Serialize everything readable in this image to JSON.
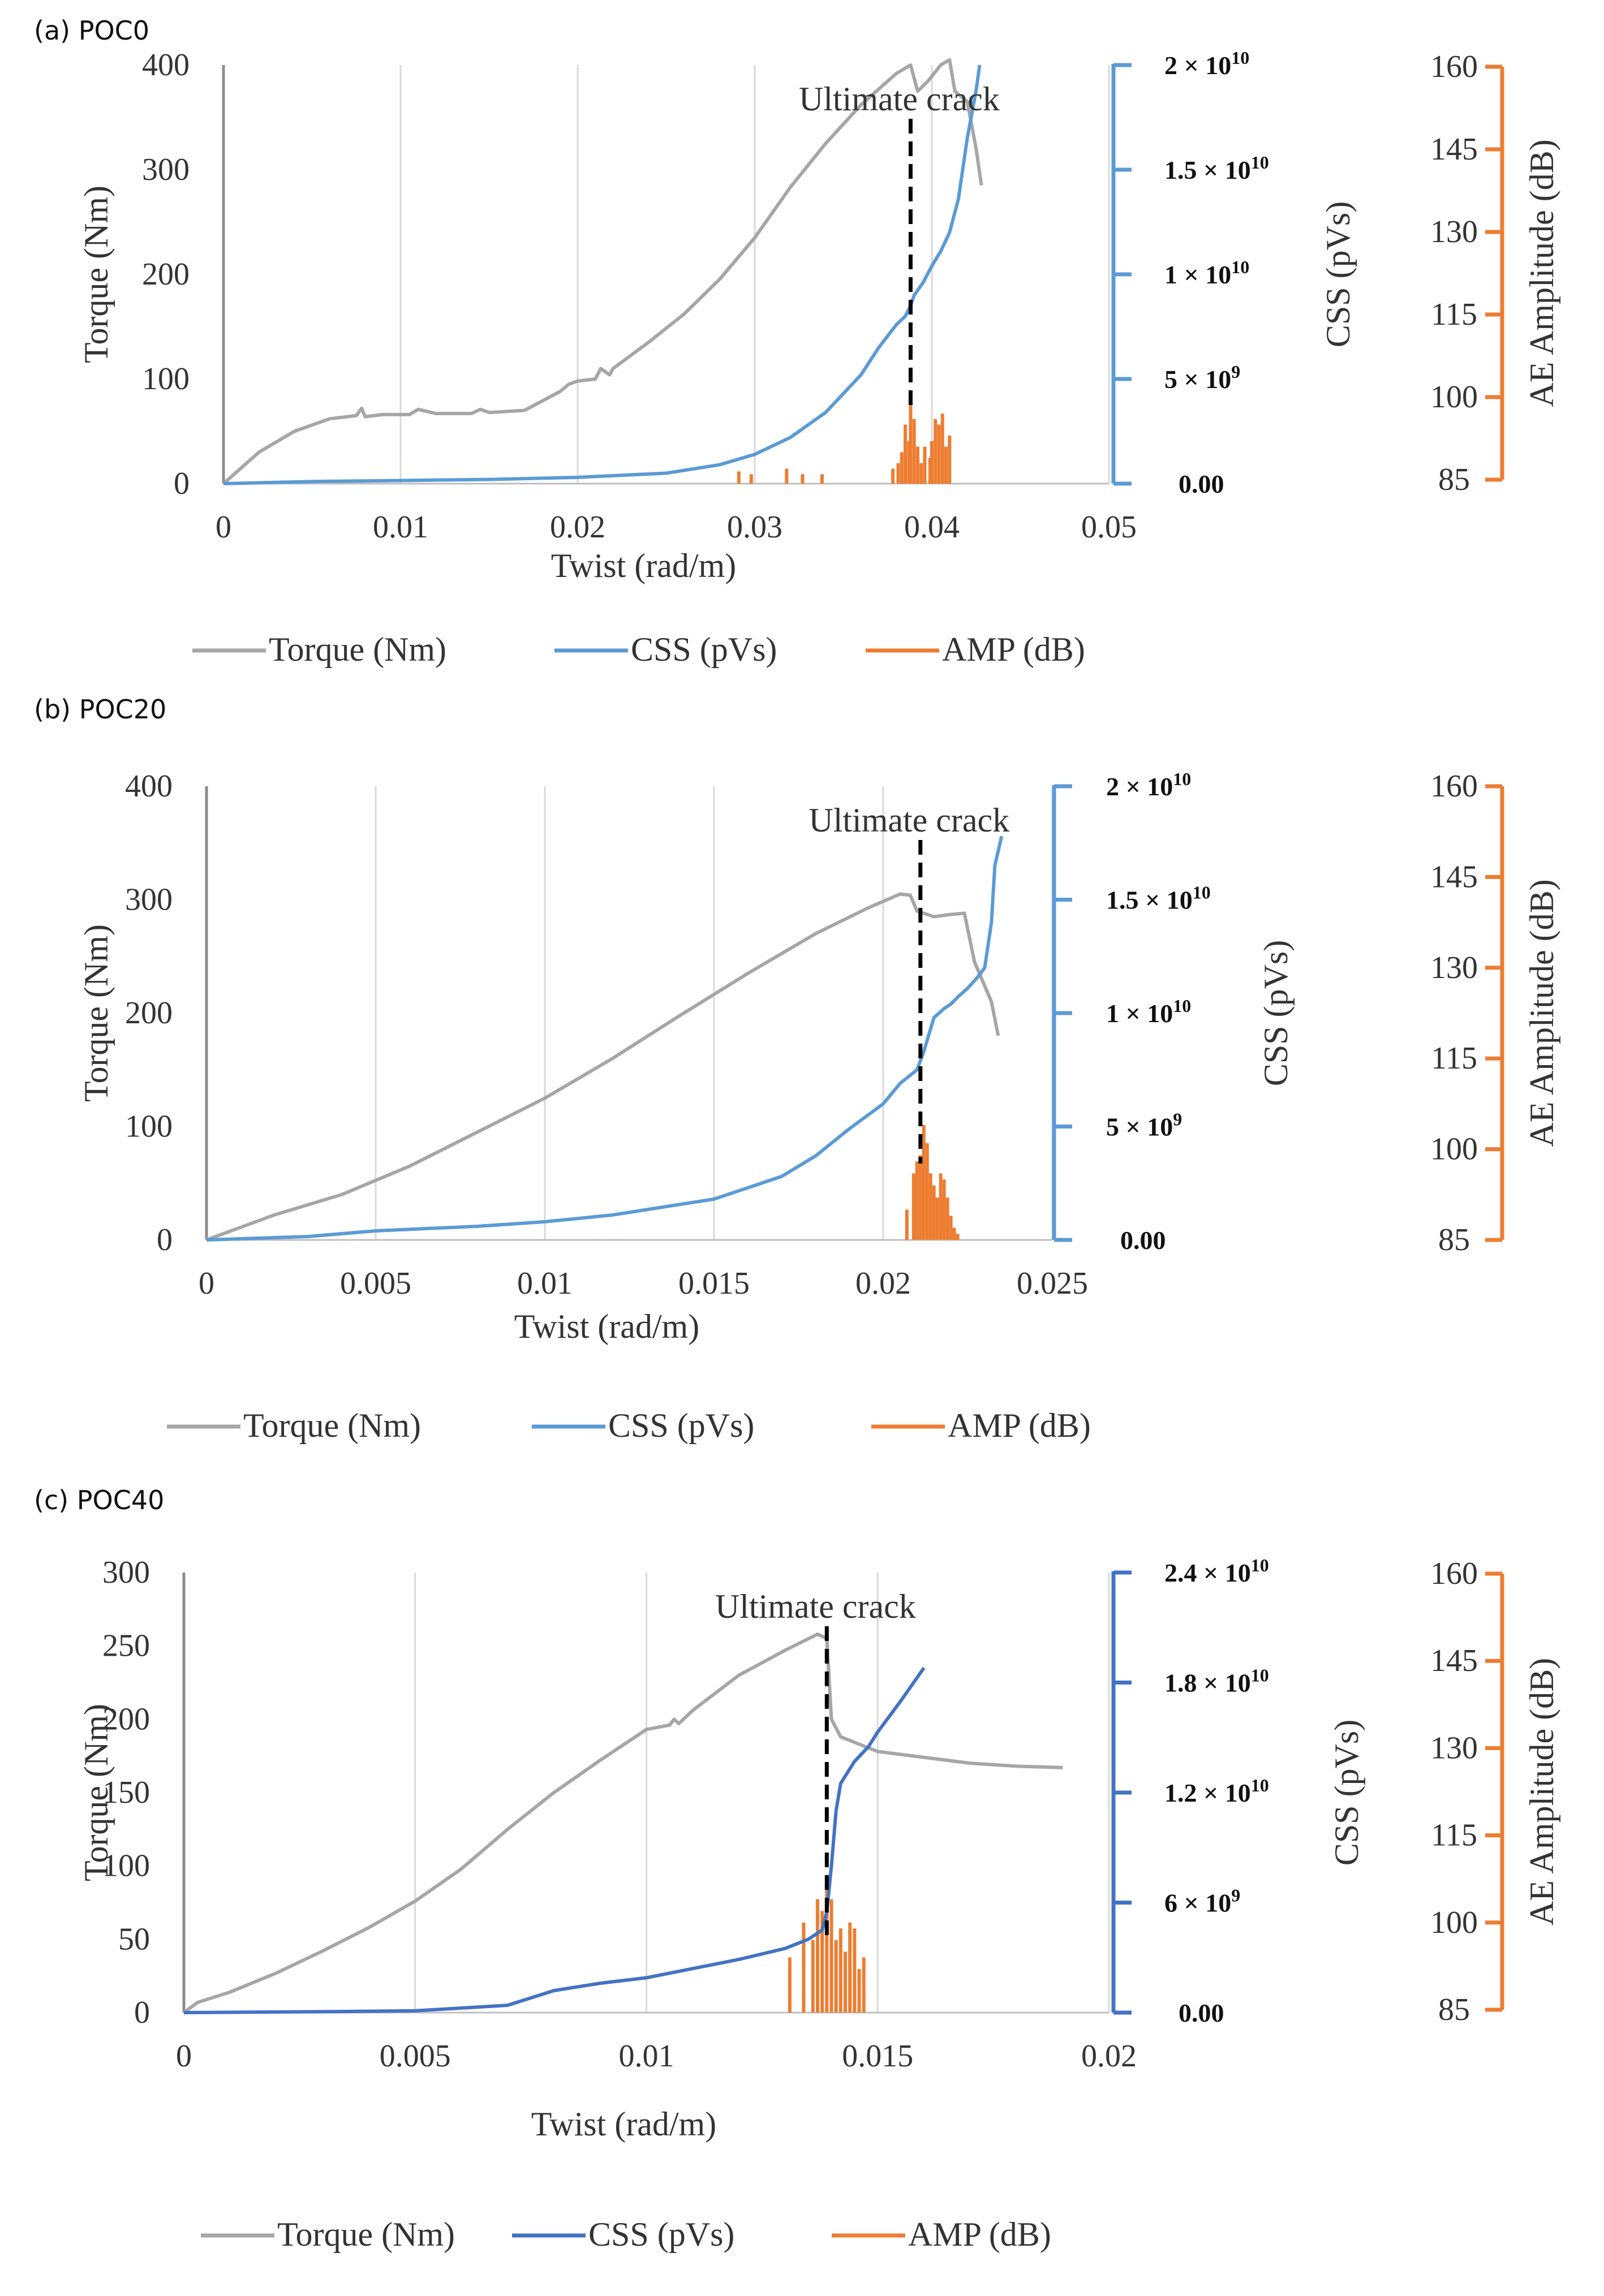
{
  "figure": {
    "colors": {
      "torque": "#a6a6a6",
      "css_a": "#5b9bd5",
      "css_b": "#5b9bd5",
      "css_c": "#4472c4",
      "amp": "#ed7d31",
      "grid": "#d9d9d9",
      "crack": "#000000",
      "text": "#333333"
    }
  },
  "chart_data": [
    {
      "type": "line",
      "panel_label": "(a)  POC0",
      "xlabel": "Twist (rad/m)",
      "ylabel": "Torque (Nm)",
      "y2label": "CSS (pVs)",
      "y3label": "AE Amplitude (dB)",
      "xlim": [
        0,
        0.05
      ],
      "ylim": [
        0,
        400
      ],
      "ylim_axis": [
        0,
        400
      ],
      "y2lim": [
        0,
        20000000000
      ],
      "y3lim": [
        85,
        160
      ],
      "x_ticks": [
        "0",
        "0.01",
        "0.02",
        "0.03",
        "0.04",
        "0.05"
      ],
      "x_tick_values": [
        0,
        0.01,
        0.02,
        0.03,
        0.04,
        0.05
      ],
      "y_ticks": [
        "0",
        "100",
        "200",
        "300",
        "400"
      ],
      "y_tick_values": [
        0,
        100,
        200,
        300,
        400
      ],
      "y2_ticks": [
        {
          "base": "0.00",
          "exp": ""
        },
        {
          "base": "5 × 10",
          "exp": "9"
        },
        {
          "base": "1 × 10",
          "exp": "10"
        },
        {
          "base": "1.5 × 10",
          "exp": "10"
        },
        {
          "base": "2 × 10",
          "exp": "10"
        }
      ],
      "y2_tick_values": [
        0,
        5000000000,
        10000000000,
        15000000000,
        20000000000
      ],
      "y3_ticks": [
        "85",
        "100",
        "115",
        "130",
        "145",
        "160"
      ],
      "y3_tick_values": [
        85,
        100,
        115,
        130,
        145,
        160
      ],
      "annotation": {
        "text": "Ultimate  crack",
        "x": 0.0388
      },
      "legend": [
        "Torque (Nm)",
        "CSS (pVs)",
        "AMP (dB)"
      ],
      "series": [
        {
          "name": "Torque (Nm)",
          "x": [
            0,
            0.002,
            0.004,
            0.006,
            0.0075,
            0.0078,
            0.008,
            0.009,
            0.0105,
            0.011,
            0.012,
            0.014,
            0.0145,
            0.015,
            0.017,
            0.019,
            0.0195,
            0.02,
            0.021,
            0.0213,
            0.0218,
            0.022,
            0.024,
            0.026,
            0.028,
            0.03,
            0.032,
            0.034,
            0.036,
            0.038,
            0.0388,
            0.0392,
            0.0398,
            0.0405,
            0.041,
            0.0413,
            0.042,
            0.0425,
            0.0428
          ],
          "y": [
            0,
            30,
            50,
            62,
            65,
            72,
            64,
            66,
            66,
            71,
            67,
            67,
            71,
            68,
            70,
            88,
            95,
            98,
            100,
            110,
            104,
            110,
            135,
            162,
            195,
            235,
            283,
            325,
            362,
            392,
            400,
            375,
            385,
            400,
            405,
            375,
            365,
            320,
            285
          ]
        },
        {
          "name": "CSS (pVs)",
          "x": [
            0,
            0.005,
            0.01,
            0.015,
            0.02,
            0.025,
            0.028,
            0.03,
            0.032,
            0.034,
            0.036,
            0.037,
            0.038,
            0.0385,
            0.0388,
            0.039,
            0.0395,
            0.04,
            0.0405,
            0.041,
            0.0415,
            0.042,
            0.0425,
            0.0427
          ],
          "y": [
            0,
            100000000,
            150000000,
            200000000,
            300000000,
            500000000,
            900000000,
            1400000000,
            2200000000,
            3400000000,
            5200000000,
            6500000000,
            7600000000,
            8000000000,
            8500000000,
            9000000000,
            9600000000,
            10400000000,
            11100000000,
            12000000000,
            13600000000,
            16500000000,
            18800000000,
            20000000000
          ]
        },
        {
          "name": "AMP (dB)",
          "x": [
            0.0291,
            0.0298,
            0.0318,
            0.0327,
            0.0338,
            0.0378,
            0.0381,
            0.0383,
            0.0385,
            0.0387,
            0.0388,
            0.039,
            0.0392,
            0.0394,
            0.0396,
            0.0399,
            0.04,
            0.0402,
            0.0404,
            0.0406,
            0.0408,
            0.041
          ],
          "y": [
            86.5,
            86,
            87,
            86,
            86,
            87,
            88,
            90,
            95,
            92,
            100,
            96,
            91,
            88,
            91,
            89,
            92,
            96,
            95,
            97,
            91,
            93
          ]
        }
      ]
    },
    {
      "type": "line",
      "panel_label": "(b)  POC20",
      "xlabel": "Twist (rad/m)",
      "ylabel": "Torque (Nm)",
      "y2label": "CSS (pVs)",
      "y3label": "AE Amplitude (dB)",
      "xlim": [
        0,
        0.025
      ],
      "ylim": [
        0,
        400
      ],
      "ylim_axis": [
        0,
        400
      ],
      "y2lim": [
        0,
        20000000000
      ],
      "y3lim": [
        85,
        160
      ],
      "x_ticks": [
        "0",
        "0.005",
        "0.01",
        "0.015",
        "0.02",
        "0.025"
      ],
      "x_tick_values": [
        0,
        0.005,
        0.01,
        0.015,
        0.02,
        0.025
      ],
      "y_ticks": [
        "0",
        "100",
        "200",
        "300",
        "400"
      ],
      "y_tick_values": [
        0,
        100,
        200,
        300,
        400
      ],
      "y2_ticks": [
        {
          "base": "0.00",
          "exp": ""
        },
        {
          "base": "5 × 10",
          "exp": "9"
        },
        {
          "base": "1 × 10",
          "exp": "10"
        },
        {
          "base": "1.5 × 10",
          "exp": "10"
        },
        {
          "base": "2 × 10",
          "exp": "10"
        }
      ],
      "y2_tick_values": [
        0,
        5000000000,
        10000000000,
        15000000000,
        20000000000
      ],
      "y3_ticks": [
        "85",
        "100",
        "115",
        "130",
        "145",
        "160"
      ],
      "y3_tick_values": [
        85,
        100,
        115,
        130,
        145,
        160
      ],
      "annotation": {
        "text": "Ultimate  crack",
        "x": 0.0211
      },
      "legend": [
        "Torque (Nm)",
        "CSS (pVs)",
        "AMP (dB)"
      ],
      "series": [
        {
          "name": "Torque (Nm)",
          "x": [
            0,
            0.002,
            0.004,
            0.006,
            0.008,
            0.01,
            0.012,
            0.014,
            0.016,
            0.018,
            0.0195,
            0.0205,
            0.0208,
            0.021,
            0.0215,
            0.022,
            0.0224,
            0.0227,
            0.0232,
            0.0234
          ],
          "y": [
            0,
            22,
            40,
            65,
            95,
            125,
            160,
            198,
            235,
            270,
            292,
            305,
            304,
            290,
            285,
            287,
            288,
            245,
            210,
            180
          ]
        },
        {
          "name": "CSS (pVs)",
          "x": [
            0,
            0.003,
            0.005,
            0.008,
            0.01,
            0.012,
            0.015,
            0.017,
            0.018,
            0.019,
            0.02,
            0.0205,
            0.021,
            0.0212,
            0.0215,
            0.0218,
            0.022,
            0.0222,
            0.0225,
            0.0228,
            0.023,
            0.0232,
            0.0233,
            0.0235
          ],
          "y": [
            0,
            150000000,
            400000000,
            600000000,
            800000000,
            1100000000,
            1800000000,
            2800000000,
            3700000000,
            4900000000,
            6000000000,
            6900000000,
            7500000000,
            8300000000,
            9800000000,
            10200000000,
            10400000000,
            10700000000,
            11100000000,
            11600000000,
            12000000000,
            14000000000,
            16500000000,
            17800000000
          ]
        },
        {
          "name": "AMP (dB)",
          "x": [
            0.0207,
            0.0209,
            0.021,
            0.0211,
            0.0212,
            0.0213,
            0.0214,
            0.0215,
            0.0216,
            0.0217,
            0.0218,
            0.0219,
            0.022,
            0.0221,
            0.0222
          ],
          "y": [
            90,
            96,
            98,
            99,
            104,
            101,
            96,
            94,
            92,
            96,
            95,
            92,
            89,
            87,
            86
          ]
        }
      ]
    },
    {
      "type": "line",
      "panel_label": "(c)  POC40",
      "xlabel": "Twist (rad/m)",
      "ylabel": "Torque (Nm)",
      "y2label": "CSS (pVs)",
      "y3label": "AE Amplitude (dB)",
      "xlim": [
        0,
        0.02
      ],
      "ylim": [
        0,
        300
      ],
      "ylim_axis": [
        0,
        300
      ],
      "y2lim": [
        0,
        24000000000
      ],
      "y3lim": [
        85,
        160
      ],
      "x_ticks": [
        "0",
        "0.005",
        "0.01",
        "0.015",
        "0.02"
      ],
      "x_tick_values": [
        0,
        0.005,
        0.01,
        0.015,
        0.02
      ],
      "y_ticks": [
        "0",
        "50",
        "100",
        "150",
        "200",
        "250",
        "300"
      ],
      "y_tick_values": [
        0,
        50,
        100,
        150,
        200,
        250,
        300
      ],
      "y2_ticks": [
        {
          "base": "0.00",
          "exp": ""
        },
        {
          "base": "6 × 10",
          "exp": "9"
        },
        {
          "base": "1.2 × 10",
          "exp": "10"
        },
        {
          "base": "1.8 × 10",
          "exp": "10"
        },
        {
          "base": "2.4 × 10",
          "exp": "10"
        }
      ],
      "y2_tick_values": [
        0,
        6000000000,
        12000000000,
        18000000000,
        24000000000
      ],
      "y3_ticks": [
        "85",
        "100",
        "115",
        "130",
        "145",
        "160"
      ],
      "y3_tick_values": [
        85,
        100,
        115,
        130,
        145,
        160
      ],
      "annotation": {
        "text": "Ultimate  crack",
        "x": 0.0139
      },
      "legend": [
        "Torque (Nm)",
        "CSS (pVs)",
        "AMP (dB)"
      ],
      "series": [
        {
          "name": "Torque (Nm)",
          "x": [
            0,
            0.0003,
            0.0006,
            0.001,
            0.002,
            0.003,
            0.004,
            0.005,
            0.006,
            0.007,
            0.008,
            0.009,
            0.01,
            0.0105,
            0.0106,
            0.0107,
            0.011,
            0.012,
            0.013,
            0.0137,
            0.0139,
            0.014,
            0.0142,
            0.015,
            0.016,
            0.017,
            0.018,
            0.019
          ],
          "y": [
            0,
            7,
            10,
            14,
            27,
            42,
            58,
            76,
            98,
            125,
            150,
            172,
            193,
            196,
            200,
            197,
            206,
            230,
            247,
            258,
            255,
            200,
            188,
            178,
            174,
            170,
            168,
            167
          ]
        },
        {
          "name": "CSS (pVs)",
          "x": [
            0,
            0.003,
            0.005,
            0.007,
            0.008,
            0.009,
            0.01,
            0.011,
            0.012,
            0.013,
            0.0135,
            0.0138,
            0.0139,
            0.014,
            0.0141,
            0.0142,
            0.0145,
            0.0148,
            0.015,
            0.0155,
            0.016
          ],
          "y": [
            0,
            50000000,
            100000000,
            400000000,
            1200000000,
            1600000000,
            1900000000,
            2400000000,
            2900000000,
            3500000000,
            4000000000,
            4500000000,
            5500000000,
            8000000000,
            11000000000,
            12500000000,
            13700000000,
            14500000000,
            15300000000,
            17000000000,
            18800000000
          ]
        },
        {
          "name": "AMP (dB)",
          "x": [
            0.0131,
            0.0134,
            0.0136,
            0.0137,
            0.0138,
            0.0139,
            0.014,
            0.0141,
            0.0142,
            0.0143,
            0.0144,
            0.0145,
            0.0146,
            0.0147
          ],
          "y": [
            94,
            100,
            97,
            104,
            102,
            106,
            104,
            97,
            99,
            95,
            100,
            99,
            92,
            94
          ]
        }
      ]
    }
  ]
}
